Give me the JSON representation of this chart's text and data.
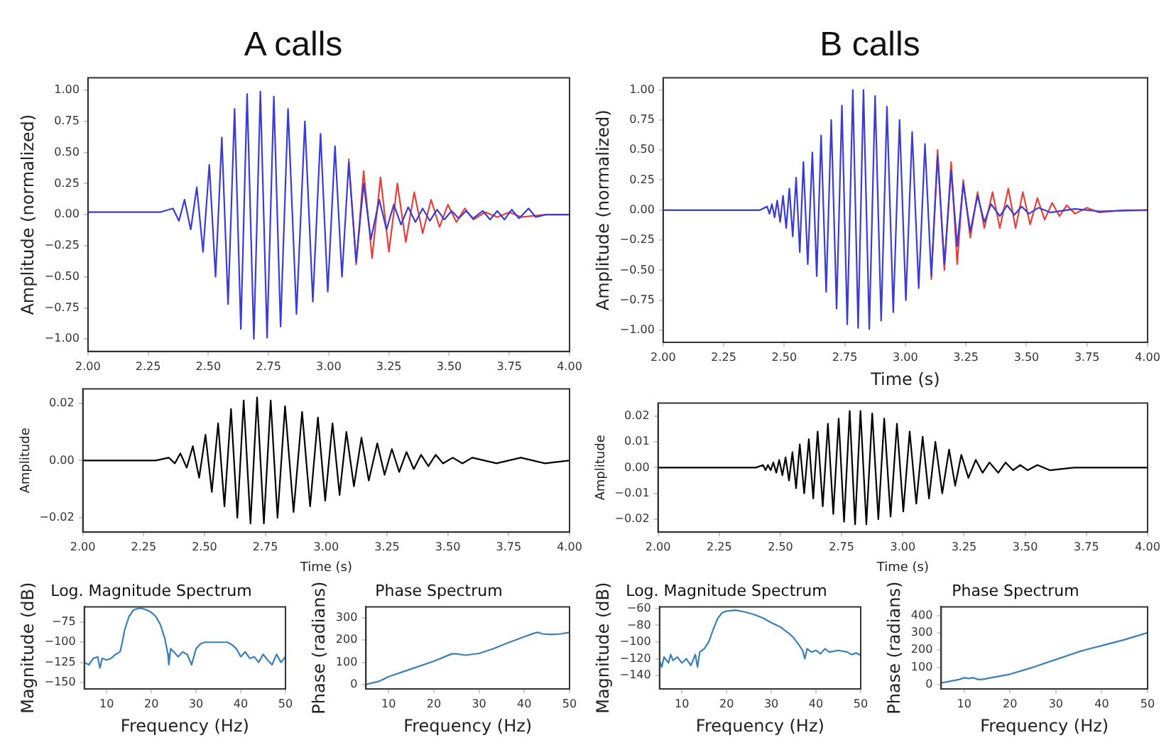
{
  "chart_data": [
    {
      "type": "line",
      "title": "A calls",
      "ylabel": "Amplitude (normalized)",
      "marker": "none",
      "xlim": [
        2,
        4
      ],
      "ylim": [
        -1.1,
        1.1
      ],
      "xticks": [
        {
          "value": 2,
          "label": "2.00"
        },
        {
          "value": 2.25,
          "label": "2.25"
        },
        {
          "value": 2.5,
          "label": "2.50"
        },
        {
          "value": 2.75,
          "label": "2.75"
        },
        {
          "value": 3,
          "label": "3.00"
        },
        {
          "value": 3.25,
          "label": "3.25"
        },
        {
          "value": 3.5,
          "label": "3.50"
        },
        {
          "value": 3.75,
          "label": "3.75"
        },
        {
          "value": 4,
          "label": "4.00"
        }
      ],
      "yticks": [
        {
          "value": -1,
          "label": "−1.00"
        },
        {
          "value": -0.75,
          "label": "−0.75"
        },
        {
          "value": -0.5,
          "label": "−0.50"
        },
        {
          "value": -0.25,
          "label": "−0.25"
        },
        {
          "value": 0,
          "label": "0.00"
        },
        {
          "value": 0.25,
          "label": "0.25"
        },
        {
          "value": 0.5,
          "label": "0.50"
        },
        {
          "value": 0.75,
          "label": "0.75"
        },
        {
          "value": 1,
          "label": "1.00"
        }
      ],
      "series": [
        {
          "color": "#e8413c",
          "x": [
            3.083,
            3.114,
            3.145,
            3.18,
            3.215,
            3.25,
            3.285,
            3.32,
            3.355,
            3.39,
            3.425,
            3.46,
            3.495,
            3.53,
            3.565,
            3.6,
            3.65,
            3.7,
            3.75,
            3.8,
            3.9,
            4.0
          ],
          "values": [
            0.45,
            -0.4,
            0.35,
            -0.35,
            0.3,
            -0.3,
            0.25,
            -0.22,
            0.18,
            -0.15,
            0.12,
            -0.1,
            0.08,
            -0.06,
            0.05,
            -0.04,
            0.02,
            -0.02,
            0.02,
            -0.02,
            0.0,
            0.0
          ]
        },
        {
          "color": "#3b3bd6",
          "x": [
            2.0,
            2.3,
            2.353,
            2.378,
            2.401,
            2.427,
            2.452,
            2.478,
            2.504,
            2.53,
            2.556,
            2.582,
            2.609,
            2.635,
            2.661,
            2.689,
            2.716,
            2.744,
            2.772,
            2.8,
            2.831,
            2.866,
            2.901,
            2.934,
            2.966,
            2.996,
            3.026,
            3.055,
            3.083,
            3.114,
            3.145,
            3.175,
            3.21,
            3.24,
            3.27,
            3.3,
            3.33,
            3.36,
            3.39,
            3.42,
            3.45,
            3.48,
            3.51,
            3.54,
            3.57,
            3.6,
            3.64,
            3.67,
            3.7,
            3.73,
            3.76,
            3.79,
            3.83,
            3.86,
            3.9,
            4.0
          ],
          "values": [
            0.02,
            0.02,
            0.05,
            -0.05,
            0.12,
            -0.12,
            0.22,
            -0.3,
            0.4,
            -0.5,
            0.62,
            -0.72,
            0.85,
            -0.92,
            0.97,
            -1.0,
            0.99,
            -0.99,
            0.95,
            -0.9,
            0.85,
            -0.8,
            0.75,
            -0.7,
            0.65,
            -0.62,
            0.55,
            -0.5,
            0.42,
            -0.38,
            0.25,
            -0.2,
            0.12,
            -0.12,
            0.08,
            -0.08,
            0.06,
            -0.06,
            0.05,
            -0.05,
            0.04,
            -0.04,
            0.03,
            -0.03,
            0.03,
            -0.03,
            0.03,
            -0.04,
            0.03,
            -0.04,
            0.04,
            -0.03,
            0.05,
            -0.02,
            0.0,
            0.0
          ]
        }
      ]
    },
    {
      "type": "line",
      "title": "B calls",
      "xlabel": "Time (s)",
      "ylabel": "Amplitude (normalized)",
      "marker": "none",
      "xlim": [
        2,
        4
      ],
      "ylim": [
        -1.1,
        1.1
      ],
      "xticks": [
        {
          "value": 2,
          "label": "2.00"
        },
        {
          "value": 2.25,
          "label": "2.25"
        },
        {
          "value": 2.5,
          "label": "2.50"
        },
        {
          "value": 2.75,
          "label": "2.75"
        },
        {
          "value": 3,
          "label": "3.00"
        },
        {
          "value": 3.25,
          "label": "3.25"
        },
        {
          "value": 3.5,
          "label": "3.50"
        },
        {
          "value": 3.75,
          "label": "3.75"
        },
        {
          "value": 4,
          "label": "4.00"
        }
      ],
      "yticks": [
        {
          "value": -1,
          "label": "−1.00"
        },
        {
          "value": -0.75,
          "label": "−0.75"
        },
        {
          "value": -0.5,
          "label": "−0.50"
        },
        {
          "value": -0.25,
          "label": "−0.25"
        },
        {
          "value": 0,
          "label": "0.00"
        },
        {
          "value": 0.25,
          "label": "0.25"
        },
        {
          "value": 0.5,
          "label": "0.50"
        },
        {
          "value": 0.75,
          "label": "0.75"
        },
        {
          "value": 1,
          "label": "1.00"
        }
      ],
      "series": [
        {
          "color": "#e8413c",
          "x": [
            3.107,
            3.133,
            3.161,
            3.189,
            3.214,
            3.239,
            3.268,
            3.298,
            3.326,
            3.36,
            3.39,
            3.425,
            3.455,
            3.485,
            3.515,
            3.545,
            3.575,
            3.606,
            3.636,
            3.666,
            3.7,
            3.75,
            3.8,
            3.9,
            4.0
          ],
          "values": [
            -0.58,
            0.5,
            -0.5,
            0.4,
            -0.45,
            0.25,
            -0.23,
            0.15,
            -0.15,
            0.15,
            -0.15,
            0.18,
            -0.15,
            0.15,
            -0.12,
            0.1,
            -0.08,
            0.06,
            -0.05,
            0.04,
            -0.03,
            0.02,
            -0.02,
            0,
            0
          ]
        },
        {
          "color": "#3b3bd6",
          "x": [
            2.0,
            2.4,
            2.429,
            2.439,
            2.449,
            2.46,
            2.471,
            2.483,
            2.495,
            2.508,
            2.521,
            2.535,
            2.549,
            2.564,
            2.579,
            2.597,
            2.616,
            2.634,
            2.652,
            2.673,
            2.694,
            2.716,
            2.738,
            2.76,
            2.783,
            2.805,
            2.827,
            2.851,
            2.875,
            2.9,
            2.924,
            2.95,
            2.976,
            3.002,
            3.028,
            3.055,
            3.081,
            3.107,
            3.133,
            3.161,
            3.189,
            3.214,
            3.239,
            3.268,
            3.298,
            3.326,
            3.354,
            3.39,
            3.42,
            3.45,
            3.48,
            3.51,
            3.55,
            3.6,
            3.7,
            3.8,
            4.0
          ],
          "values": [
            0,
            0,
            0.03,
            -0.03,
            0.05,
            -0.06,
            0.08,
            -0.1,
            0.12,
            -0.15,
            0.18,
            -0.22,
            0.27,
            -0.35,
            0.4,
            -0.45,
            0.48,
            -0.55,
            0.62,
            -0.68,
            0.75,
            -0.82,
            0.87,
            -0.95,
            1.0,
            -0.98,
            1.0,
            -0.99,
            0.95,
            -0.92,
            0.86,
            -0.85,
            0.75,
            -0.75,
            0.65,
            -0.65,
            0.55,
            -0.55,
            0.45,
            -0.45,
            0.33,
            -0.3,
            0.22,
            -0.18,
            0.12,
            -0.1,
            0.05,
            -0.05,
            0.04,
            -0.04,
            0.03,
            -0.03,
            0.02,
            -0.02,
            0.01,
            -0.01,
            0
          ]
        }
      ]
    },
    {
      "type": "line",
      "xlabel": "Time (s)",
      "ylabel": "Amplitude",
      "marker": "none",
      "xlim": [
        2,
        4
      ],
      "ylim": [
        -0.025,
        0.025
      ],
      "xticks": [
        {
          "value": 2,
          "label": "2.00"
        },
        {
          "value": 2.25,
          "label": "2.25"
        },
        {
          "value": 2.5,
          "label": "2.50"
        },
        {
          "value": 2.75,
          "label": "2.75"
        },
        {
          "value": 3,
          "label": "3.00"
        },
        {
          "value": 3.25,
          "label": "3.25"
        },
        {
          "value": 3.5,
          "label": "3.50"
        },
        {
          "value": 3.75,
          "label": "3.75"
        },
        {
          "value": 4,
          "label": "4.00"
        }
      ],
      "yticks": [
        {
          "value": -0.02,
          "label": "−0.02"
        },
        {
          "value": 0,
          "label": "0.00"
        },
        {
          "value": 0.02,
          "label": "0.02"
        }
      ],
      "series": [
        {
          "color": "#000000",
          "x": [
            2.0,
            2.3,
            2.353,
            2.378,
            2.401,
            2.427,
            2.452,
            2.478,
            2.504,
            2.53,
            2.556,
            2.582,
            2.609,
            2.635,
            2.661,
            2.689,
            2.716,
            2.744,
            2.772,
            2.8,
            2.831,
            2.866,
            2.901,
            2.934,
            2.966,
            2.996,
            3.026,
            3.055,
            3.083,
            3.114,
            3.145,
            3.175,
            3.21,
            3.24,
            3.27,
            3.3,
            3.33,
            3.36,
            3.39,
            3.42,
            3.45,
            3.48,
            3.52,
            3.56,
            3.6,
            3.7,
            3.8,
            3.9,
            4.0
          ],
          "values": [
            0,
            0,
            0.001,
            -0.001,
            0.0025,
            -0.0025,
            0.005,
            -0.006,
            0.009,
            -0.011,
            0.013,
            -0.016,
            0.018,
            -0.02,
            0.021,
            -0.022,
            0.022,
            -0.022,
            0.021,
            -0.02,
            0.019,
            -0.018,
            0.017,
            -0.016,
            0.015,
            -0.014,
            0.013,
            -0.012,
            0.01,
            -0.009,
            0.008,
            -0.007,
            0.006,
            -0.005,
            0.004,
            -0.004,
            0.003,
            -0.003,
            0.002,
            -0.002,
            0.002,
            -0.001,
            0.001,
            -0.001,
            0.001,
            -0.001,
            0.001,
            -0.001,
            0
          ]
        }
      ]
    },
    {
      "type": "line",
      "xlabel": "Time (s)",
      "ylabel": "Amplitude",
      "marker": "none",
      "xlim": [
        2,
        4
      ],
      "ylim": [
        -0.025,
        0.025
      ],
      "xticks": [
        {
          "value": 2,
          "label": "2.00"
        },
        {
          "value": 2.25,
          "label": "2.25"
        },
        {
          "value": 2.5,
          "label": "2.50"
        },
        {
          "value": 2.75,
          "label": "2.75"
        },
        {
          "value": 3,
          "label": "3.00"
        },
        {
          "value": 3.25,
          "label": "3.25"
        },
        {
          "value": 3.5,
          "label": "3.50"
        },
        {
          "value": 3.75,
          "label": "3.75"
        },
        {
          "value": 4,
          "label": "4.00"
        }
      ],
      "yticks": [
        {
          "value": -0.02,
          "label": "−0.02"
        },
        {
          "value": -0.01,
          "label": "−0.01"
        },
        {
          "value": 0,
          "label": "0.00"
        },
        {
          "value": 0.01,
          "label": "0.01"
        },
        {
          "value": 0.02,
          "label": "0.02"
        }
      ],
      "series": [
        {
          "color": "#000000",
          "x": [
            2.0,
            2.4,
            2.429,
            2.439,
            2.449,
            2.46,
            2.471,
            2.483,
            2.495,
            2.508,
            2.521,
            2.535,
            2.549,
            2.564,
            2.579,
            2.597,
            2.616,
            2.634,
            2.652,
            2.673,
            2.694,
            2.716,
            2.738,
            2.76,
            2.783,
            2.805,
            2.827,
            2.851,
            2.875,
            2.9,
            2.924,
            2.95,
            2.976,
            3.002,
            3.028,
            3.055,
            3.081,
            3.107,
            3.133,
            3.161,
            3.189,
            3.214,
            3.239,
            3.268,
            3.298,
            3.326,
            3.354,
            3.39,
            3.42,
            3.45,
            3.48,
            3.51,
            3.55,
            3.6,
            3.7,
            3.8,
            4.0
          ],
          "values": [
            0,
            0,
            0.001,
            -0.001,
            0.001,
            -0.001,
            0.002,
            -0.002,
            0.003,
            -0.003,
            0.004,
            -0.005,
            0.006,
            -0.008,
            0.009,
            -0.01,
            0.011,
            -0.012,
            0.014,
            -0.015,
            0.017,
            -0.018,
            0.019,
            -0.021,
            0.022,
            -0.022,
            0.022,
            -0.022,
            0.021,
            -0.02,
            0.019,
            -0.019,
            0.017,
            -0.017,
            0.014,
            -0.014,
            0.012,
            -0.012,
            0.01,
            -0.01,
            0.007,
            -0.007,
            0.005,
            -0.004,
            0.003,
            -0.002,
            0.002,
            -0.002,
            0.002,
            -0.001,
            0.001,
            -0.001,
            0.001,
            -0.001,
            0,
            0,
            0
          ]
        }
      ]
    },
    {
      "type": "line",
      "title": "Log. Magnitude Spectrum",
      "xlabel": "Frequency (Hz)",
      "ylabel": "Magnitude (dB)",
      "marker": "none",
      "xlim": [
        5,
        50
      ],
      "ylim": [
        -158,
        -56
      ],
      "xticks": [
        10,
        20,
        30,
        40,
        50
      ],
      "yticks": [
        {
          "value": -150,
          "label": "−150"
        },
        {
          "value": -125,
          "label": "−125"
        },
        {
          "value": -100,
          "label": "−100"
        },
        {
          "value": -75,
          "label": "−75"
        }
      ],
      "series": [
        {
          "color": "#3a7fb8",
          "x": [
            5,
            6,
            7,
            8,
            8.5,
            9,
            10,
            11,
            12,
            13,
            13.5,
            14,
            15,
            16,
            17,
            18,
            19,
            20,
            21,
            22,
            23,
            23.7,
            23.9,
            24.3,
            25,
            26,
            27,
            28,
            29,
            30,
            31,
            32,
            35,
            37,
            38,
            39,
            40,
            41,
            42,
            43,
            44,
            45,
            46,
            47,
            48,
            49,
            50
          ],
          "values": [
            -125,
            -128,
            -120,
            -118,
            -132,
            -120,
            -122,
            -120,
            -115,
            -112,
            -100,
            -85,
            -68,
            -60,
            -58,
            -58,
            -60,
            -63,
            -68,
            -78,
            -95,
            -115,
            -128,
            -108,
            -112,
            -118,
            -112,
            -115,
            -128,
            -108,
            -102,
            -100,
            -100,
            -100,
            -103,
            -108,
            -118,
            -112,
            -120,
            -118,
            -125,
            -115,
            -122,
            -128,
            -115,
            -125,
            -118
          ]
        }
      ]
    },
    {
      "type": "line",
      "title": "Phase Spectrum",
      "xlabel": "Frequency (Hz)",
      "ylabel": "Phase (radians)",
      "marker": "none",
      "xlim": [
        5,
        50
      ],
      "ylim": [
        -20,
        350
      ],
      "xticks": [
        10,
        20,
        30,
        40,
        50
      ],
      "yticks": [
        0,
        100,
        200,
        300
      ],
      "series": [
        {
          "color": "#3a7fb8",
          "x": [
            5,
            7,
            8,
            10,
            15,
            20,
            23,
            24,
            25,
            27,
            30,
            33,
            36,
            40,
            42,
            43,
            44,
            46,
            48,
            50
          ],
          "values": [
            0,
            10,
            15,
            35,
            70,
            105,
            130,
            138,
            138,
            132,
            140,
            160,
            185,
            215,
            230,
            235,
            228,
            225,
            228,
            235
          ]
        }
      ]
    },
    {
      "type": "line",
      "title": "Log. Magnitude Spectrum",
      "xlabel": "Frequency (Hz)",
      "ylabel": "Magnitude (dB)",
      "marker": "none",
      "xlim": [
        5,
        50
      ],
      "ylim": [
        -156,
        -58
      ],
      "xticks": [
        10,
        20,
        30,
        40,
        50
      ],
      "yticks": [
        {
          "value": -140,
          "label": "−140"
        },
        {
          "value": -120,
          "label": "−120"
        },
        {
          "value": -100,
          "label": "−100"
        },
        {
          "value": -80,
          "label": "−80"
        },
        {
          "value": -60,
          "label": "−60"
        }
      ],
      "series": [
        {
          "color": "#3a7fb8",
          "x": [
            5,
            5.5,
            6,
            7,
            7.5,
            8,
            9,
            10,
            11,
            12,
            13,
            13.5,
            14,
            15,
            16,
            17,
            18,
            19,
            20,
            22,
            24,
            26,
            28,
            30,
            32,
            34,
            35,
            36,
            37,
            37.5,
            38,
            39,
            40,
            41,
            42,
            43,
            45,
            47,
            48,
            49,
            50
          ],
          "values": [
            -122,
            -130,
            -118,
            -125,
            -115,
            -122,
            -118,
            -125,
            -120,
            -128,
            -115,
            -130,
            -112,
            -108,
            -100,
            -85,
            -72,
            -65,
            -63,
            -62,
            -64,
            -67,
            -71,
            -77,
            -82,
            -90,
            -95,
            -102,
            -110,
            -120,
            -108,
            -112,
            -110,
            -114,
            -108,
            -112,
            -110,
            -112,
            -115,
            -113,
            -116
          ]
        }
      ]
    },
    {
      "type": "line",
      "title": "Phase Spectrum",
      "xlabel": "Frequency (Hz)",
      "ylabel": "Phase (radians)",
      "marker": "none",
      "xlim": [
        5,
        50
      ],
      "ylim": [
        -25,
        450
      ],
      "xticks": [
        10,
        20,
        30,
        40,
        50
      ],
      "yticks": [
        0,
        100,
        200,
        300,
        400
      ],
      "series": [
        {
          "color": "#3a7fb8",
          "x": [
            5,
            7,
            9,
            10,
            11,
            12,
            13,
            14,
            16,
            20,
            25,
            30,
            35,
            37,
            40,
            45,
            50
          ],
          "values": [
            10,
            20,
            30,
            40,
            35,
            40,
            30,
            30,
            40,
            60,
            100,
            145,
            190,
            205,
            225,
            260,
            300
          ]
        }
      ]
    }
  ]
}
